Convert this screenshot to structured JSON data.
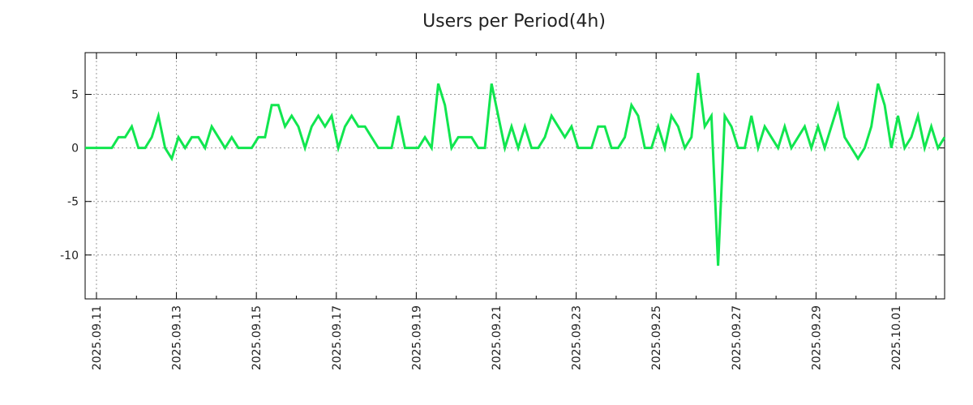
{
  "chart_data": {
    "type": "line",
    "title": "Users per Period(4h)",
    "xlabel": "",
    "ylabel": "",
    "interval": "4h",
    "grid": true,
    "line_color": "#11e64f",
    "ylim": [
      -14.1,
      8.9
    ],
    "yticks": [
      5,
      0,
      -5,
      -10
    ],
    "xticks": [
      {
        "label": "2025.09.11",
        "x": 1.7
      },
      {
        "label": "2025.09.13",
        "x": 13.7
      },
      {
        "label": "2025.09.15",
        "x": 25.7
      },
      {
        "label": "2025.09.17",
        "x": 37.7
      },
      {
        "label": "2025.09.19",
        "x": 49.7
      },
      {
        "label": "2025.09.21",
        "x": 61.7
      },
      {
        "label": "2025.09.23",
        "x": 73.7
      },
      {
        "label": "2025.09.25",
        "x": 85.7
      },
      {
        "label": "2025.09.27",
        "x": 97.7
      },
      {
        "label": "2025.09.29",
        "x": 109.7
      },
      {
        "label": "2025.10.01",
        "x": 121.7
      }
    ],
    "values": [
      0,
      0,
      0,
      0,
      0,
      1,
      1,
      2,
      0,
      0,
      1,
      3,
      0,
      -1,
      1,
      0,
      1,
      1,
      0,
      2,
      1,
      0,
      1,
      0,
      0,
      0,
      1,
      1,
      4,
      4,
      2,
      3,
      2,
      0,
      2,
      3,
      2,
      3,
      0,
      2,
      3,
      2,
      2,
      1,
      0,
      0,
      0,
      3,
      0,
      0,
      0,
      1,
      0,
      6,
      4,
      0,
      1,
      1,
      1,
      0,
      0,
      6,
      3,
      0,
      2,
      0,
      2,
      0,
      0,
      1,
      3,
      2,
      1,
      2,
      0,
      0,
      0,
      2,
      2,
      0,
      0,
      1,
      4,
      3,
      0,
      0,
      2,
      0,
      3,
      2,
      0,
      1,
      7,
      2,
      3,
      -11,
      3,
      2,
      0,
      0,
      3,
      0,
      2,
      1,
      0,
      2,
      0,
      1,
      2,
      0,
      2,
      0,
      2,
      4,
      1,
      0,
      -1,
      0,
      2,
      6,
      4,
      0,
      3,
      0,
      1,
      3,
      0,
      2,
      0,
      1
    ]
  }
}
